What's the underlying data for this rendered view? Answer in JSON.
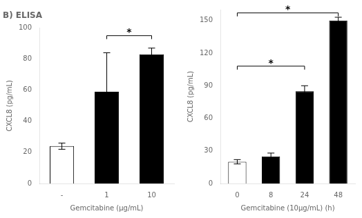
{
  "chart_data": [
    {
      "type": "bar",
      "title": "B) ELISA",
      "categories": [
        "-",
        "1",
        "10"
      ],
      "values": [
        24,
        59,
        83
      ],
      "errors": [
        2,
        25,
        4
      ],
      "colors": [
        "white",
        "black",
        "black"
      ],
      "ylabel": "CXCL8 (pg/mL)",
      "xlabel": "Gemcitabine (μg/mL)",
      "ylim": [
        0,
        100
      ],
      "yticks": [
        0,
        20,
        40,
        60,
        80,
        100
      ],
      "grid": false,
      "annotations": [
        {
          "text": "*",
          "from": "1",
          "to": "10",
          "y": 95
        }
      ]
    },
    {
      "type": "bar",
      "categories": [
        "0",
        "8",
        "24",
        "48"
      ],
      "values": [
        20,
        25,
        85,
        150
      ],
      "errors": [
        2,
        3,
        5,
        3
      ],
      "colors": [
        "white",
        "black",
        "black",
        "black"
      ],
      "ylabel": "CXCL8 (pg/mL)",
      "xlabel": "Gemcitabine (10μg/mL) (h)",
      "ylim": [
        0,
        160
      ],
      "yticks": [
        0,
        30,
        60,
        90,
        120,
        150
      ],
      "grid": false,
      "annotations": [
        {
          "text": "*",
          "from": "0",
          "to": "24",
          "y": 108
        },
        {
          "text": "*",
          "from": "0",
          "to": "48",
          "y": 157
        }
      ]
    }
  ]
}
